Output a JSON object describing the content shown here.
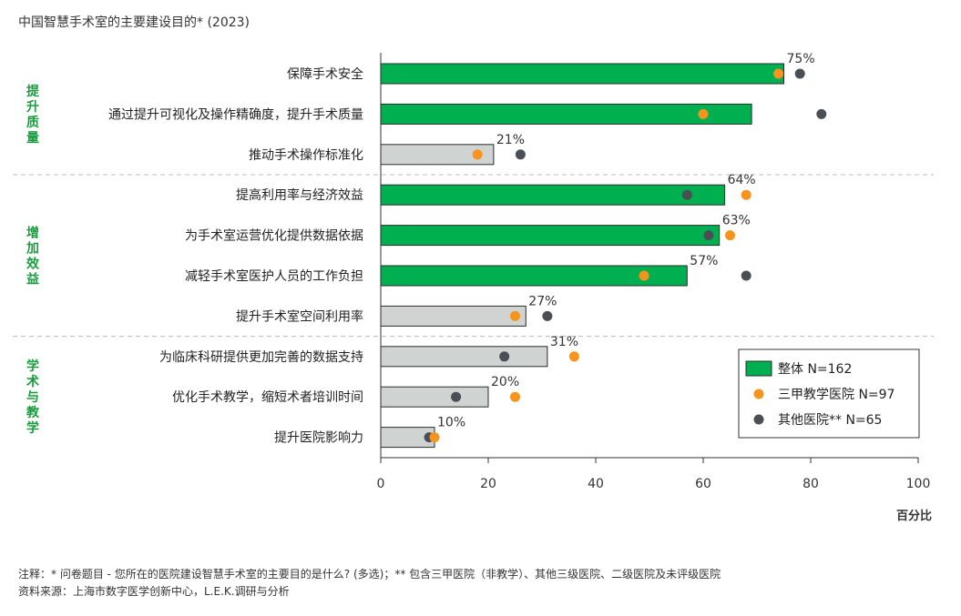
{
  "chart_data": {
    "type": "bar",
    "orientation": "horizontal",
    "title": "中国智慧手术室的主要建设目的* (2023)",
    "xlabel": "百分比",
    "xlim": [
      0,
      100
    ],
    "xticks": [
      "0",
      "20",
      "40",
      "60",
      "80",
      "100"
    ],
    "groups": [
      {
        "label": "提升质量",
        "color": "#1a9c3e",
        "start": 0,
        "end": 2
      },
      {
        "label": "增加效益",
        "color": "#1a9c3e",
        "start": 3,
        "end": 6
      },
      {
        "label": "学术与教学",
        "color": "#1a9c3e",
        "start": 7,
        "end": 9
      }
    ],
    "categories": [
      "保障手术安全",
      "通过提升可视化及操作精确度，提升手术质量",
      "推动手术操作标准化",
      "提高利用率与经济效益",
      "为手术室运营优化提供数据依据",
      "减轻手术室医护人员的工作负担",
      "提升手术室空间利用率",
      "为临床科研提供更加完善的数据支持",
      "优化手术教学，缩短术者培训时间",
      "提升医院影响力"
    ],
    "bar_styles": [
      "green",
      "green",
      "gray",
      "green",
      "green",
      "green",
      "gray",
      "gray",
      "gray",
      "gray"
    ],
    "series": [
      {
        "name": "整体 N=162",
        "marker": "bar",
        "values": [
          75,
          69,
          21,
          64,
          63,
          57,
          27,
          31,
          20,
          10
        ]
      },
      {
        "name": "三甲教学医院 N=97",
        "marker": "dot",
        "color": "#f7941d",
        "values": [
          74,
          60,
          18,
          68,
          65,
          49,
          25,
          36,
          25,
          10
        ]
      },
      {
        "name": "其他医院** N=65",
        "marker": "dot",
        "color": "#4a4f55",
        "values": [
          78,
          82,
          26,
          57,
          61,
          68,
          31,
          23,
          14,
          9
        ]
      }
    ],
    "data_labels": [
      "75%",
      "",
      "21%",
      "64%",
      "63%",
      "57%",
      "27%",
      "31%",
      "20%",
      "10%"
    ],
    "legend_position": "bottom-right",
    "colors": {
      "green": "#00b050",
      "gray": "#cfd4d3",
      "bar_stroke": "#2b2b2b",
      "orange": "#f7941d",
      "dark": "#4a4f55",
      "group_text": "#1a9c3e"
    }
  },
  "notes": {
    "note": "注释：* 问卷题目 - 您所在的医院建设智慧手术室的主要目的是什么? (多选)；** 包含三甲医院（非教学）、其他三级医院、二级医院及未评级医院",
    "source": "资料来源：上海市数字医学创新中心，L.E.K.调研与分析"
  }
}
